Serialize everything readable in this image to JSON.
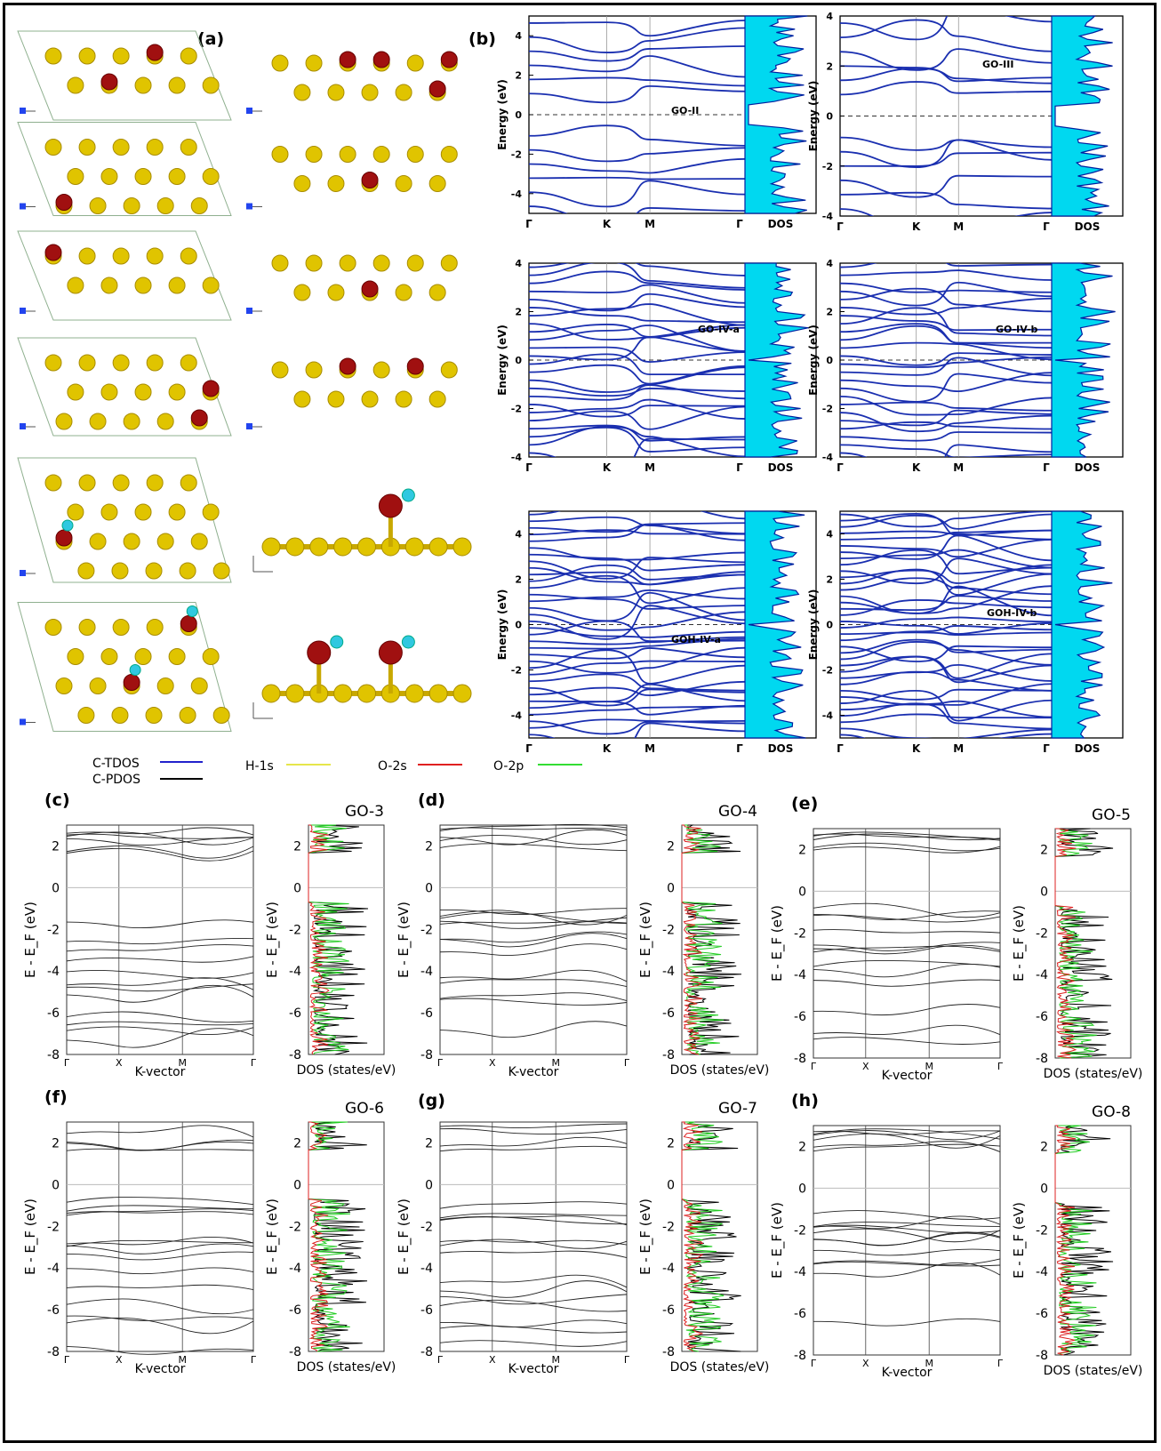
{
  "panel_labels": {
    "a": "(a)",
    "b": "(b)",
    "c": "(c)",
    "d": "(d)",
    "e": "(e)",
    "f": "(f)",
    "g": "(g)",
    "h": "(h)"
  },
  "legend": [
    {
      "label": "C-TDOS",
      "color": "#2222cc"
    },
    {
      "label": "C-PDOS",
      "color": "#000000"
    },
    {
      "label": "H-1s",
      "color": "#e6e64a"
    },
    {
      "label": "O-2s",
      "color": "#e02020"
    },
    {
      "label": "O-2p",
      "color": "#33dd33"
    }
  ],
  "colors": {
    "carbon": "#e0c400",
    "oxygen": "#a01010",
    "hydrogen": "#30c8e0",
    "band_blue": "#1a2fb0",
    "dos_fill": "#00d8f0"
  },
  "structures": [
    {
      "row": 1,
      "atom_labels": []
    },
    {
      "row": 2,
      "atom_labels": []
    },
    {
      "row": 3,
      "atom_labels": []
    },
    {
      "row": 4,
      "atom_labels": []
    },
    {
      "row": 5,
      "atom_labels": [
        "O",
        "C",
        "C",
        "C",
        "C",
        "C",
        "C",
        "C",
        "C",
        "H"
      ]
    },
    {
      "row": 6,
      "atom_labels": [
        "O",
        "O",
        "C",
        "C",
        "C",
        "C",
        "C",
        "C",
        "C",
        "H"
      ]
    }
  ],
  "chart_data": [
    {
      "type": "line",
      "panel": "b",
      "title": "GO-II",
      "ylabel": "Energy (eV)",
      "ylim": [
        -5,
        5
      ],
      "yticks": [
        4,
        2,
        0,
        -2,
        -4
      ],
      "kpoints": [
        "Γ",
        "K",
        "M",
        "Γ"
      ],
      "dos_label": "DOS"
    },
    {
      "type": "line",
      "panel": "b",
      "title": "GO-III",
      "ylabel": "Energy (eV)",
      "ylim": [
        -4,
        4
      ],
      "yticks": [
        4,
        2,
        0,
        -2,
        -4
      ],
      "kpoints": [
        "Γ",
        "K",
        "M",
        "Γ"
      ],
      "dos_label": "DOS"
    },
    {
      "type": "line",
      "panel": "b",
      "title": "GO-IV-a",
      "ylabel": "Energy (eV)",
      "ylim": [
        -4,
        4
      ],
      "yticks": [
        4,
        2,
        0,
        -2,
        -4
      ],
      "kpoints": [
        "Γ",
        "K",
        "M",
        "Γ"
      ],
      "dos_label": "DOS"
    },
    {
      "type": "line",
      "panel": "b",
      "title": "GO-IV-b",
      "ylabel": "Energy (eV)",
      "ylim": [
        -4,
        4
      ],
      "yticks": [
        4,
        2,
        0,
        -2,
        -4
      ],
      "kpoints": [
        "Γ",
        "K",
        "M",
        "Γ"
      ],
      "dos_label": "DOS"
    },
    {
      "type": "line",
      "panel": "b",
      "title": "GOH-IV-a",
      "ylabel": "Energy (eV)",
      "ylim": [
        -5,
        5
      ],
      "yticks": [
        4,
        2,
        0,
        -2,
        -4
      ],
      "kpoints": [
        "Γ",
        "K",
        "M",
        "Γ"
      ],
      "dos_label": "DOS"
    },
    {
      "type": "line",
      "panel": "b",
      "title": "GOH-IV-b",
      "ylabel": "Energy (eV)",
      "ylim": [
        -5,
        5
      ],
      "yticks": [
        4,
        2,
        0,
        -2,
        -4
      ],
      "kpoints": [
        "Γ",
        "K",
        "M",
        "Γ"
      ],
      "dos_label": "DOS"
    },
    {
      "type": "line",
      "panel": "c",
      "title": "GO-3",
      "ylabel": "E - E_F (eV)",
      "xlabel": "K-vector",
      "dos_xlabel": "DOS (states/eV)",
      "ylim": [
        -8,
        3
      ],
      "yticks": [
        2,
        0,
        -2,
        -4,
        -6,
        -8
      ],
      "kpoints": [
        "Γ",
        "X",
        "M",
        "Γ"
      ]
    },
    {
      "type": "line",
      "panel": "d",
      "title": "GO-4",
      "ylabel": "E - E_F (eV)",
      "xlabel": "K-vector",
      "dos_xlabel": "DOS (states/eV)",
      "ylim": [
        -8,
        3
      ],
      "yticks": [
        2,
        0,
        -2,
        -4,
        -6,
        -8
      ],
      "kpoints": [
        "Γ",
        "X",
        "M",
        "Γ"
      ]
    },
    {
      "type": "line",
      "panel": "e",
      "title": "GO-5",
      "ylabel": "E - E_F (eV)",
      "xlabel": "K-vector",
      "dos_xlabel": "DOS (states/eV)",
      "ylim": [
        -8,
        3
      ],
      "yticks": [
        2,
        0,
        -2,
        -4,
        -6,
        -8
      ],
      "kpoints": [
        "Γ",
        "X",
        "M",
        "Γ"
      ]
    },
    {
      "type": "line",
      "panel": "f",
      "title": "GO-6",
      "ylabel": "E - E_F (eV)",
      "xlabel": "K-vector",
      "dos_xlabel": "DOS (states/eV)",
      "ylim": [
        -8,
        3
      ],
      "yticks": [
        2,
        0,
        -2,
        -4,
        -6,
        -8
      ],
      "kpoints": [
        "Γ",
        "X",
        "M",
        "Γ"
      ]
    },
    {
      "type": "line",
      "panel": "g",
      "title": "GO-7",
      "ylabel": "E - E_F (eV)",
      "xlabel": "K-vector",
      "dos_xlabel": "DOS (states/eV)",
      "ylim": [
        -8,
        3
      ],
      "yticks": [
        2,
        0,
        -2,
        -4,
        -6,
        -8
      ],
      "kpoints": [
        "Γ",
        "X",
        "M",
        "Γ"
      ]
    },
    {
      "type": "line",
      "panel": "h",
      "title": "GO-8",
      "ylabel": "E - E_F (eV)",
      "xlabel": "K-vector",
      "dos_xlabel": "DOS (states/eV)",
      "ylim": [
        -8,
        3
      ],
      "yticks": [
        2,
        0,
        -2,
        -4,
        -6,
        -8
      ],
      "kpoints": [
        "Γ",
        "X",
        "M",
        "Γ"
      ]
    }
  ]
}
